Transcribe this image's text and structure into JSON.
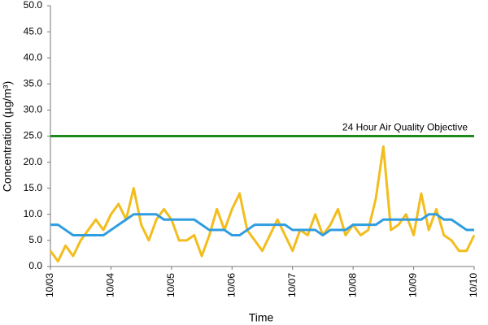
{
  "chart_data": {
    "type": "line",
    "x_label": "Time",
    "y_label": "Concentration (µg/m³)",
    "x": [
      0,
      0.125,
      0.25,
      0.375,
      0.5,
      0.625,
      0.75,
      0.875,
      1,
      1.125,
      1.25,
      1.375,
      1.5,
      1.625,
      1.75,
      1.875,
      2,
      2.125,
      2.25,
      2.375,
      2.5,
      2.625,
      2.75,
      2.875,
      3,
      3.125,
      3.25,
      3.375,
      3.5,
      3.625,
      3.75,
      3.875,
      4,
      4.125,
      4.25,
      4.375,
      4.5,
      4.625,
      4.75,
      4.875,
      5,
      5.125,
      5.25,
      5.375,
      5.5,
      5.625,
      5.75,
      5.875,
      6,
      6.125,
      6.25,
      6.375,
      6.5,
      6.625,
      6.75,
      6.875,
      7
    ],
    "series": [
      {
        "color": "#f2bd1d",
        "values": [
          3,
          1,
          4,
          2,
          5,
          7,
          9,
          7,
          10,
          12,
          9,
          15,
          8,
          5,
          9,
          11,
          9,
          5,
          5,
          6,
          2,
          6,
          11,
          7,
          11,
          14,
          7,
          5,
          3,
          6,
          9,
          6,
          3,
          7,
          6,
          10,
          6,
          8,
          11,
          6,
          8,
          6,
          7,
          13,
          23,
          7,
          8,
          10,
          6,
          14,
          7,
          11,
          6,
          5,
          3,
          3,
          6
        ]
      },
      {
        "color": "#2f9de0",
        "values": [
          8,
          8,
          7,
          6,
          6,
          6,
          6,
          6,
          7,
          8,
          9,
          10,
          10,
          10,
          10,
          9,
          9,
          9,
          9,
          9,
          8,
          7,
          7,
          7,
          6,
          6,
          7,
          8,
          8,
          8,
          8,
          8,
          7,
          7,
          7,
          7,
          6,
          7,
          7,
          7,
          8,
          8,
          8,
          8,
          9,
          9,
          9,
          9,
          9,
          9,
          10,
          10,
          9,
          9,
          8,
          7,
          7
        ]
      }
    ],
    "reference_line": {
      "value": 25,
      "label": "24 Hour Air Quality Objective",
      "color": "#1e8a1e"
    },
    "xlim": [
      0,
      7
    ],
    "xticks": [
      {
        "value": 0,
        "label": "10/03"
      },
      {
        "value": 1,
        "label": "10/04"
      },
      {
        "value": 2,
        "label": "10/05"
      },
      {
        "value": 3,
        "label": "10/06"
      },
      {
        "value": 4,
        "label": "10/07"
      },
      {
        "value": 5,
        "label": "10/08"
      },
      {
        "value": 6,
        "label": "10/09"
      },
      {
        "value": 7,
        "label": "10/10"
      }
    ],
    "ylim": [
      0,
      50
    ],
    "yticks": [
      {
        "value": 0,
        "label": "0.0"
      },
      {
        "value": 5,
        "label": "5.0"
      },
      {
        "value": 10,
        "label": "10.0"
      },
      {
        "value": 15,
        "label": "15.0"
      },
      {
        "value": 20,
        "label": "20.0"
      },
      {
        "value": 25,
        "label": "25.0"
      },
      {
        "value": 30,
        "label": "30.0"
      },
      {
        "value": 35,
        "label": "35.0"
      },
      {
        "value": 40,
        "label": "40.0"
      },
      {
        "value": 45,
        "label": "45.0"
      },
      {
        "value": 50,
        "label": "50.0"
      }
    ],
    "grid": false
  }
}
